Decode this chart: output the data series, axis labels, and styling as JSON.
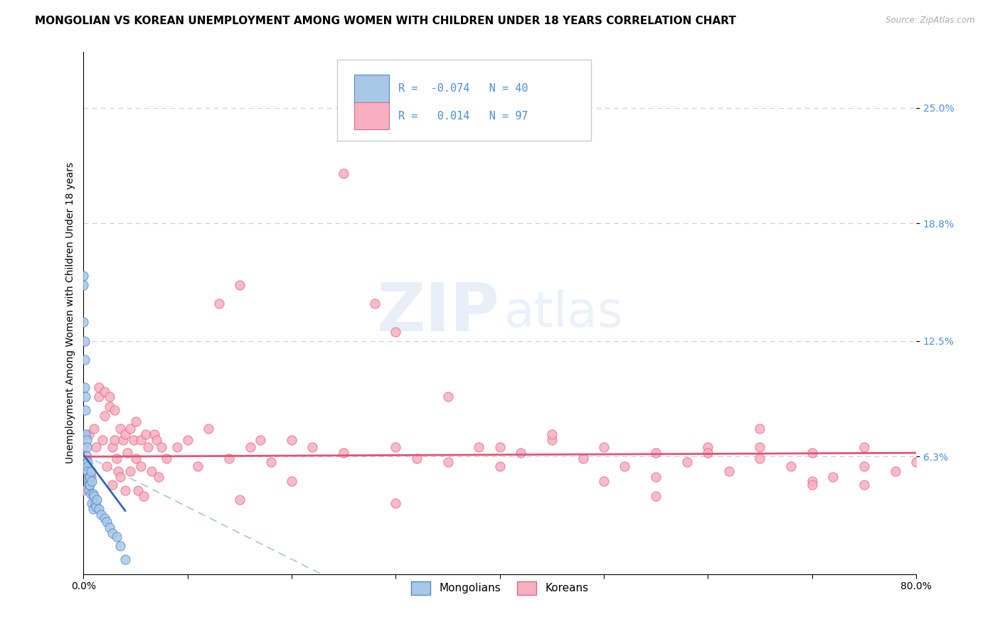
{
  "title": "MONGOLIAN VS KOREAN UNEMPLOYMENT AMONG WOMEN WITH CHILDREN UNDER 18 YEARS CORRELATION CHART",
  "source": "Source: ZipAtlas.com",
  "ylabel": "Unemployment Among Women with Children Under 18 years",
  "xlim": [
    0.0,
    0.8
  ],
  "ylim": [
    0.0,
    0.28
  ],
  "yticks": [
    0.063,
    0.125,
    0.188,
    0.25
  ],
  "ytick_labels": [
    "6.3%",
    "12.5%",
    "18.8%",
    "25.0%"
  ],
  "xticks": [
    0.0,
    0.1,
    0.2,
    0.3,
    0.4,
    0.5,
    0.6,
    0.7,
    0.8
  ],
  "xtick_labels": [
    "0.0%",
    "",
    "",
    "",
    "",
    "",
    "",
    "",
    "80.0%"
  ],
  "mongolian_color": "#a8c8e8",
  "korean_color": "#f8b0c0",
  "mongolian_edge": "#5588cc",
  "korean_edge": "#e06888",
  "mongolian_R": -0.074,
  "mongolian_N": 40,
  "korean_R": 0.014,
  "korean_N": 97,
  "legend_label_1": "Mongolians",
  "legend_label_2": "Koreans",
  "watermark_zip": "ZIP",
  "watermark_atlas": "atlas",
  "background_color": "#ffffff",
  "grid_color": "#cccccc",
  "axis_label_color": "#4a90d9",
  "mon_trend_color": "#3366bb",
  "kor_trend_color": "#e05575",
  "dash_color": "#99bbdd",
  "mongolian_x": [
    0.0,
    0.0,
    0.0,
    0.001,
    0.001,
    0.001,
    0.002,
    0.002,
    0.002,
    0.003,
    0.003,
    0.003,
    0.004,
    0.004,
    0.004,
    0.005,
    0.005,
    0.005,
    0.005,
    0.006,
    0.006,
    0.007,
    0.007,
    0.008,
    0.008,
    0.009,
    0.009,
    0.01,
    0.011,
    0.012,
    0.013,
    0.015,
    0.017,
    0.02,
    0.022,
    0.025,
    0.028,
    0.032,
    0.035,
    0.04
  ],
  "mongolian_y": [
    0.16,
    0.155,
    0.135,
    0.125,
    0.115,
    0.1,
    0.095,
    0.088,
    0.075,
    0.072,
    0.068,
    0.063,
    0.06,
    0.058,
    0.055,
    0.052,
    0.05,
    0.048,
    0.045,
    0.052,
    0.048,
    0.055,
    0.043,
    0.05,
    0.038,
    0.043,
    0.035,
    0.042,
    0.038,
    0.036,
    0.04,
    0.035,
    0.032,
    0.03,
    0.028,
    0.025,
    0.022,
    0.02,
    0.015,
    0.008
  ],
  "korean_x": [
    0.0,
    0.0,
    0.003,
    0.005,
    0.007,
    0.01,
    0.012,
    0.015,
    0.015,
    0.018,
    0.02,
    0.02,
    0.022,
    0.025,
    0.025,
    0.028,
    0.028,
    0.03,
    0.03,
    0.032,
    0.033,
    0.035,
    0.035,
    0.038,
    0.04,
    0.04,
    0.042,
    0.045,
    0.045,
    0.048,
    0.05,
    0.05,
    0.052,
    0.055,
    0.055,
    0.058,
    0.06,
    0.062,
    0.065,
    0.068,
    0.07,
    0.072,
    0.075,
    0.08,
    0.09,
    0.1,
    0.11,
    0.12,
    0.13,
    0.14,
    0.15,
    0.16,
    0.17,
    0.18,
    0.2,
    0.22,
    0.25,
    0.28,
    0.3,
    0.32,
    0.35,
    0.38,
    0.4,
    0.42,
    0.45,
    0.48,
    0.5,
    0.52,
    0.55,
    0.58,
    0.6,
    0.62,
    0.65,
    0.68,
    0.7,
    0.72,
    0.75,
    0.78,
    0.8,
    0.35,
    0.45,
    0.55,
    0.65,
    0.75,
    0.3,
    0.5,
    0.6,
    0.7,
    0.25,
    0.4,
    0.2,
    0.15,
    0.3,
    0.55,
    0.65,
    0.7,
    0.75
  ],
  "korean_y": [
    0.068,
    0.045,
    0.058,
    0.075,
    0.052,
    0.078,
    0.068,
    0.1,
    0.095,
    0.072,
    0.098,
    0.085,
    0.058,
    0.095,
    0.09,
    0.068,
    0.048,
    0.088,
    0.072,
    0.062,
    0.055,
    0.078,
    0.052,
    0.072,
    0.075,
    0.045,
    0.065,
    0.078,
    0.055,
    0.072,
    0.082,
    0.062,
    0.045,
    0.072,
    0.058,
    0.042,
    0.075,
    0.068,
    0.055,
    0.075,
    0.072,
    0.052,
    0.068,
    0.062,
    0.068,
    0.072,
    0.058,
    0.078,
    0.145,
    0.062,
    0.155,
    0.068,
    0.072,
    0.06,
    0.072,
    0.068,
    0.065,
    0.145,
    0.068,
    0.062,
    0.06,
    0.068,
    0.058,
    0.065,
    0.072,
    0.062,
    0.068,
    0.058,
    0.065,
    0.06,
    0.068,
    0.055,
    0.062,
    0.058,
    0.065,
    0.052,
    0.068,
    0.055,
    0.06,
    0.095,
    0.075,
    0.052,
    0.068,
    0.048,
    0.13,
    0.05,
    0.065,
    0.05,
    0.215,
    0.068,
    0.05,
    0.04,
    0.038,
    0.042,
    0.078,
    0.048,
    0.058
  ],
  "title_fontsize": 11,
  "axis_fontsize": 9,
  "tick_fontsize": 9,
  "marker_size": 90
}
